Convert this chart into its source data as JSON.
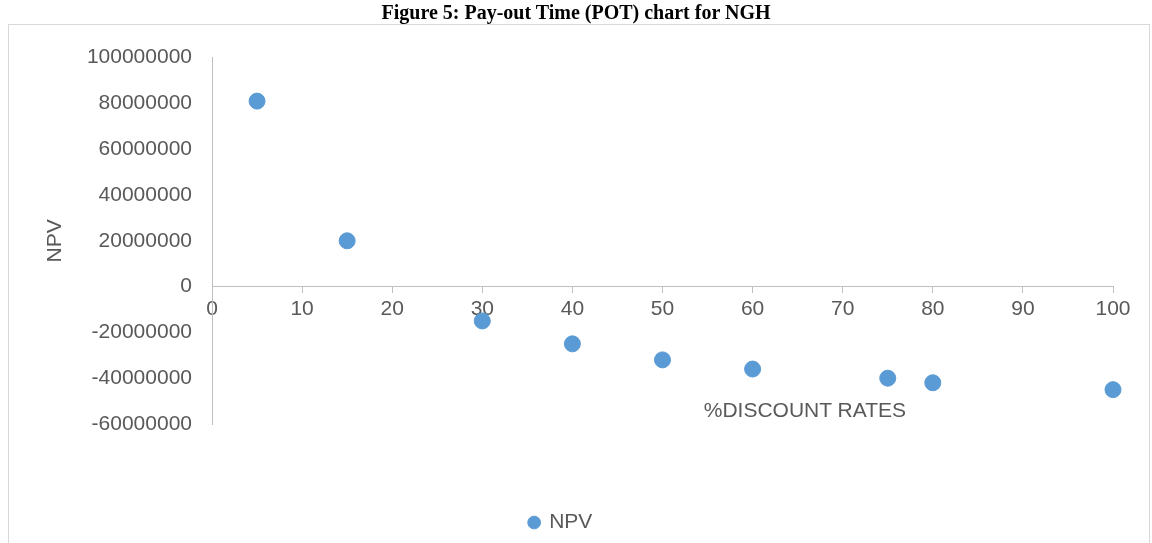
{
  "chart_data": {
    "type": "scatter",
    "title": "Figure 5: Pay-out Time (POT) chart for NGH",
    "xlabel": "%DISCOUNT RATES",
    "ylabel": "NPV",
    "x": [
      5,
      15,
      30,
      40,
      50,
      60,
      75,
      80,
      100
    ],
    "series": [
      {
        "name": "NPV",
        "color": "#5b9bd5",
        "values": [
          81000000,
          20000000,
          -15000000,
          -25000000,
          -32000000,
          -36000000,
          -40000000,
          -42000000,
          -45000000
        ]
      }
    ],
    "xlim": [
      0,
      100
    ],
    "xticks": [
      0,
      10,
      20,
      30,
      40,
      50,
      60,
      70,
      80,
      90,
      100
    ],
    "ylim": [
      -60000000,
      100000000
    ],
    "yticks": [
      -60000000,
      -40000000,
      -20000000,
      0,
      20000000,
      40000000,
      60000000,
      80000000,
      100000000
    ],
    "legend": "bottom",
    "marker": "circle"
  }
}
